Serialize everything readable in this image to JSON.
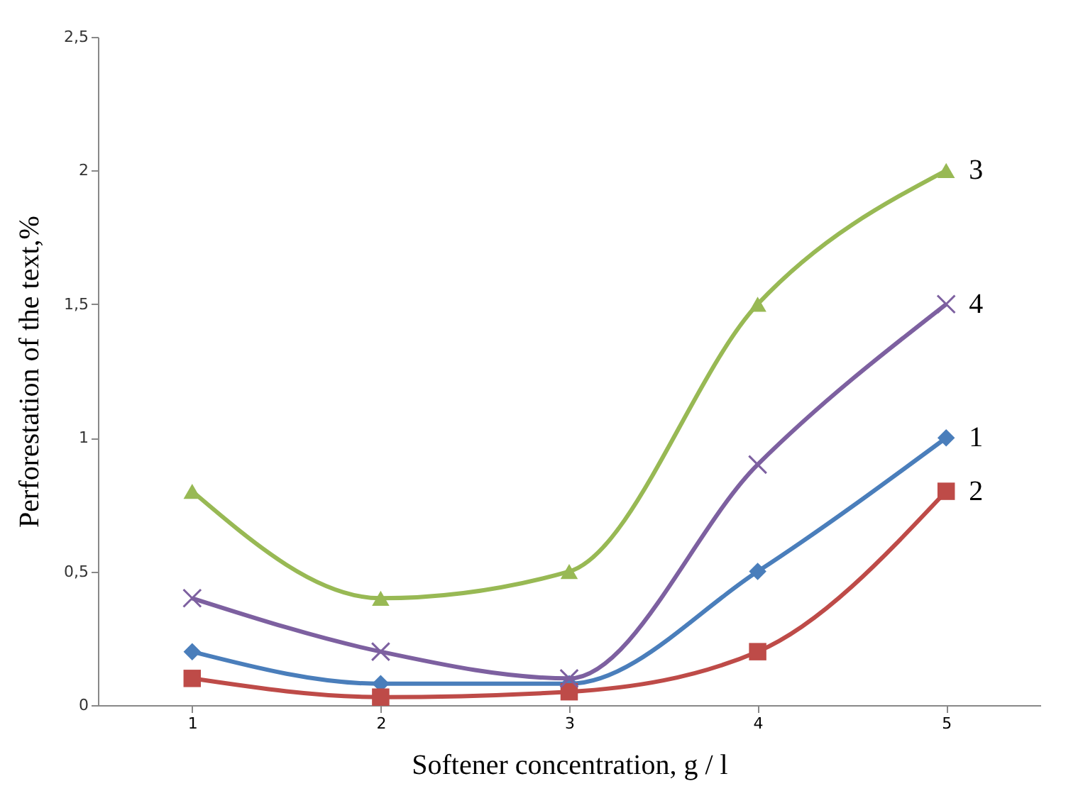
{
  "chart_data": {
    "type": "line",
    "xlabel": "Softener concentration, g / l",
    "ylabel": "Perforestation of the text,%",
    "categories": [
      "1",
      "2",
      "3",
      "4",
      "5"
    ],
    "series": [
      {
        "name": "1",
        "color": "#4a7ebb",
        "marker": "diamond",
        "values": [
          0.2,
          0.08,
          0.08,
          0.5,
          1.0
        ]
      },
      {
        "name": "2",
        "color": "#be4b48",
        "marker": "square",
        "values": [
          0.1,
          0.03,
          0.05,
          0.2,
          0.8
        ]
      },
      {
        "name": "3",
        "color": "#98b954",
        "marker": "triangle",
        "values": [
          0.8,
          0.4,
          0.5,
          1.5,
          2.0
        ]
      },
      {
        "name": "4",
        "color": "#7d60a0",
        "marker": "cross",
        "values": [
          0.4,
          0.2,
          0.1,
          0.9,
          1.5
        ]
      }
    ],
    "ylim": [
      0,
      2.5
    ],
    "yticks": [
      0,
      {
        "value": 0.5,
        "label": "0,5"
      },
      1,
      {
        "value": 1.5,
        "label": "1,5"
      },
      2,
      {
        "value": 2.5,
        "label": "2,5"
      }
    ],
    "grid": false,
    "legend": false,
    "line_style": "solid"
  }
}
